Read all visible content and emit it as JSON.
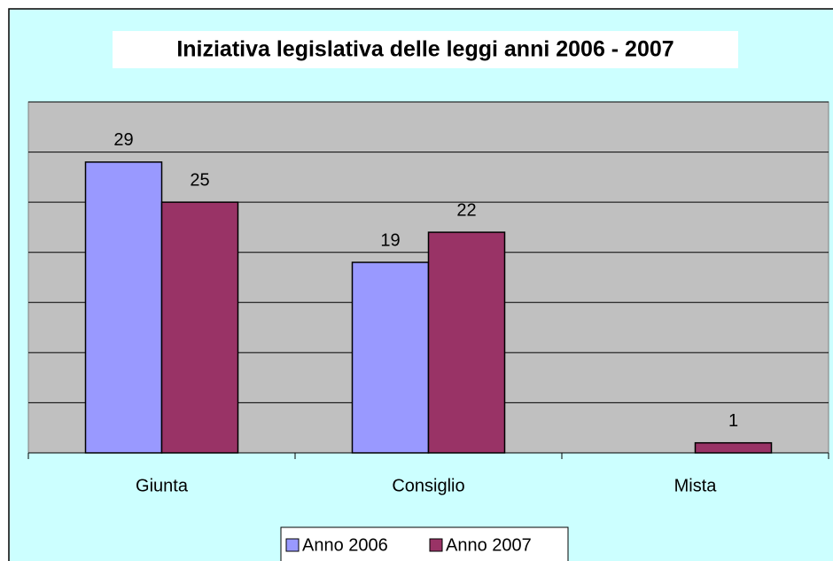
{
  "chart_data": {
    "type": "bar",
    "title": "Iniziativa legislativa delle leggi anni 2006 - 2007",
    "categories": [
      "Giunta",
      "Consiglio",
      "Mista"
    ],
    "series": [
      {
        "name": "Anno 2006",
        "color": "#9999ff",
        "values": [
          29,
          19,
          null
        ]
      },
      {
        "name": "Anno 2007",
        "color": "#993366",
        "values": [
          25,
          22,
          1
        ]
      }
    ],
    "ylim": [
      0,
      35
    ],
    "yticks": [
      0,
      5,
      10,
      15,
      20,
      25,
      30,
      35
    ],
    "grid": true,
    "legend": "bottom"
  }
}
